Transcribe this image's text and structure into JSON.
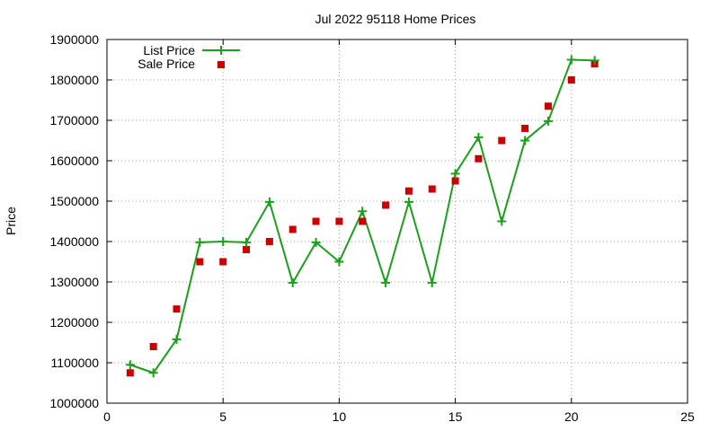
{
  "chart_data": {
    "type": "line",
    "title": "Jul 2022 95118 Home Prices",
    "xlabel": "",
    "ylabel": "Price",
    "xlim": [
      0,
      25
    ],
    "ylim": [
      1000000,
      1900000
    ],
    "x_ticks": [
      "0",
      "5",
      "10",
      "15",
      "20",
      "25"
    ],
    "y_ticks": [
      "1000000",
      "1100000",
      "1200000",
      "1300000",
      "1400000",
      "1500000",
      "1600000",
      "1700000",
      "1800000",
      "1900000"
    ],
    "grid": true,
    "legend_position": "top-left",
    "series": [
      {
        "name": "List Price",
        "style": "line-with-plus-markers",
        "color": "#1aa01a",
        "x": [
          1,
          2,
          3,
          4,
          5,
          6,
          7,
          8,
          9,
          10,
          11,
          12,
          13,
          14,
          15,
          16,
          17,
          18,
          19,
          20,
          21
        ],
        "values": [
          1095000,
          1075000,
          1158000,
          1398000,
          1400000,
          1398000,
          1498000,
          1298000,
          1398000,
          1350000,
          1475000,
          1298000,
          1498000,
          1298000,
          1568000,
          1658000,
          1450000,
          1650000,
          1698000,
          1850000,
          1848000
        ]
      },
      {
        "name": "Sale Price",
        "style": "square-markers",
        "color": "#cc0000",
        "x": [
          1,
          2,
          3,
          4,
          5,
          6,
          7,
          8,
          9,
          10,
          11,
          12,
          13,
          14,
          15,
          16,
          17,
          18,
          19,
          20,
          21
        ],
        "values": [
          1075000,
          1140000,
          1233000,
          1350000,
          1350000,
          1380000,
          1400000,
          1430000,
          1450000,
          1450000,
          1450000,
          1490000,
          1525000,
          1530000,
          1550000,
          1605000,
          1650000,
          1680000,
          1735000,
          1800000,
          1840000
        ]
      }
    ]
  }
}
